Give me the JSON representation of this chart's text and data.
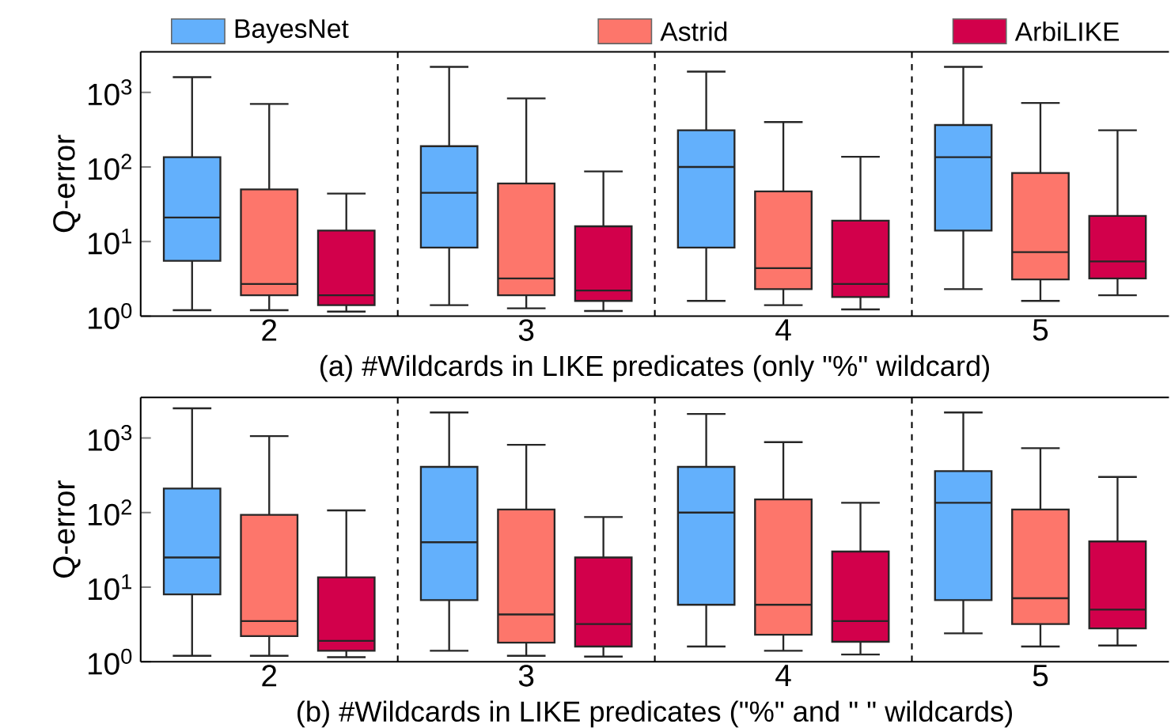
{
  "chart_data": [
    {
      "type": "box",
      "categories": [
        "2",
        "3",
        "4",
        "5"
      ],
      "xlabel": "(a) #Wildcards in LIKE predicates (only \"%\" wildcard)",
      "ylabel": "Q-error",
      "log": "y",
      "legend": "top",
      "ylim": [
        1,
        3500
      ],
      "yticks": [
        {
          "value": 1,
          "label": "10$^{0}$"
        },
        {
          "value": 10,
          "label": "10$^{1}$"
        },
        {
          "value": 100,
          "label": "10$^{2}$"
        },
        {
          "value": 1000,
          "label": "10$^{3}$"
        }
      ],
      "series": [
        {
          "name": "BayesNet",
          "color": "#63b0fc",
          "boxes": [
            {
              "low": 1.2,
              "q1": 5.5,
              "median": 21,
              "q3": 135,
              "high": 1600
            },
            {
              "low": 1.4,
              "q1": 8.3,
              "median": 45,
              "q3": 190,
              "high": 2200
            },
            {
              "low": 1.6,
              "q1": 8.3,
              "median": 100,
              "q3": 310,
              "high": 1900
            },
            {
              "low": 2.3,
              "q1": 14,
              "median": 135,
              "q3": 365,
              "high": 2200
            }
          ]
        },
        {
          "name": "Astrid",
          "color": "#fd766b",
          "boxes": [
            {
              "low": 1.2,
              "q1": 1.9,
              "median": 2.7,
              "q3": 50,
              "high": 700
            },
            {
              "low": 1.27,
              "q1": 1.9,
              "median": 3.2,
              "q3": 60,
              "high": 830
            },
            {
              "low": 1.4,
              "q1": 2.3,
              "median": 4.4,
              "q3": 47,
              "high": 400
            },
            {
              "low": 1.6,
              "q1": 3.1,
              "median": 7.2,
              "q3": 83,
              "high": 720
            }
          ]
        },
        {
          "name": "ArbiLIKE",
          "color": "#d2004b",
          "boxes": [
            {
              "low": 1.15,
              "q1": 1.4,
              "median": 1.9,
              "q3": 14,
              "high": 44
            },
            {
              "low": 1.17,
              "q1": 1.6,
              "median": 2.2,
              "q3": 16,
              "high": 87
            },
            {
              "low": 1.23,
              "q1": 1.8,
              "median": 2.7,
              "q3": 19,
              "high": 137
            },
            {
              "low": 1.9,
              "q1": 3.2,
              "median": 5.4,
              "q3": 22,
              "high": 310
            }
          ]
        }
      ]
    },
    {
      "type": "box",
      "categories": [
        "2",
        "3",
        "4",
        "5"
      ],
      "xlabel": "(b) #Wildcards in LIKE predicates  (\"%\" and \"  \" wildcards)",
      "ylabel": "Q-error",
      "log": "y",
      "ylim": [
        1,
        3500
      ],
      "yticks": [
        {
          "value": 1,
          "label": "10$^{0}$"
        },
        {
          "value": 10,
          "label": "10$^{1}$"
        },
        {
          "value": 100,
          "label": "10$^{2}$"
        },
        {
          "value": 1000,
          "label": "10$^{3}$"
        }
      ],
      "series": [
        {
          "color": "#63b0fc",
          "boxes": [
            {
              "low": 1.2,
              "q1": 8,
              "median": 25,
              "q3": 210,
              "high": 2500
            },
            {
              "low": 1.4,
              "q1": 6.7,
              "median": 40,
              "q3": 410,
              "high": 2200
            },
            {
              "low": 1.6,
              "q1": 5.8,
              "median": 100,
              "q3": 410,
              "high": 2100
            },
            {
              "low": 2.4,
              "q1": 6.7,
              "median": 135,
              "q3": 360,
              "high": 2200
            }
          ]
        },
        {
          "color": "#fd766b",
          "boxes": [
            {
              "low": 1.2,
              "q1": 2.2,
              "median": 3.5,
              "q3": 93,
              "high": 1060
            },
            {
              "low": 1.2,
              "q1": 1.8,
              "median": 4.3,
              "q3": 110,
              "high": 810
            },
            {
              "low": 1.4,
              "q1": 2.3,
              "median": 5.8,
              "q3": 150,
              "high": 880
            },
            {
              "low": 1.6,
              "q1": 3.2,
              "median": 7.1,
              "q3": 110,
              "high": 730
            }
          ]
        },
        {
          "color": "#d2004b",
          "boxes": [
            {
              "low": 1.15,
              "q1": 1.4,
              "median": 1.9,
              "q3": 13.5,
              "high": 107
            },
            {
              "low": 1.17,
              "q1": 1.6,
              "median": 3.2,
              "q3": 25,
              "high": 87
            },
            {
              "low": 1.25,
              "q1": 1.85,
              "median": 3.5,
              "q3": 30,
              "high": 135
            },
            {
              "low": 1.65,
              "q1": 2.8,
              "median": 5,
              "q3": 41,
              "high": 300
            }
          ]
        }
      ]
    }
  ]
}
